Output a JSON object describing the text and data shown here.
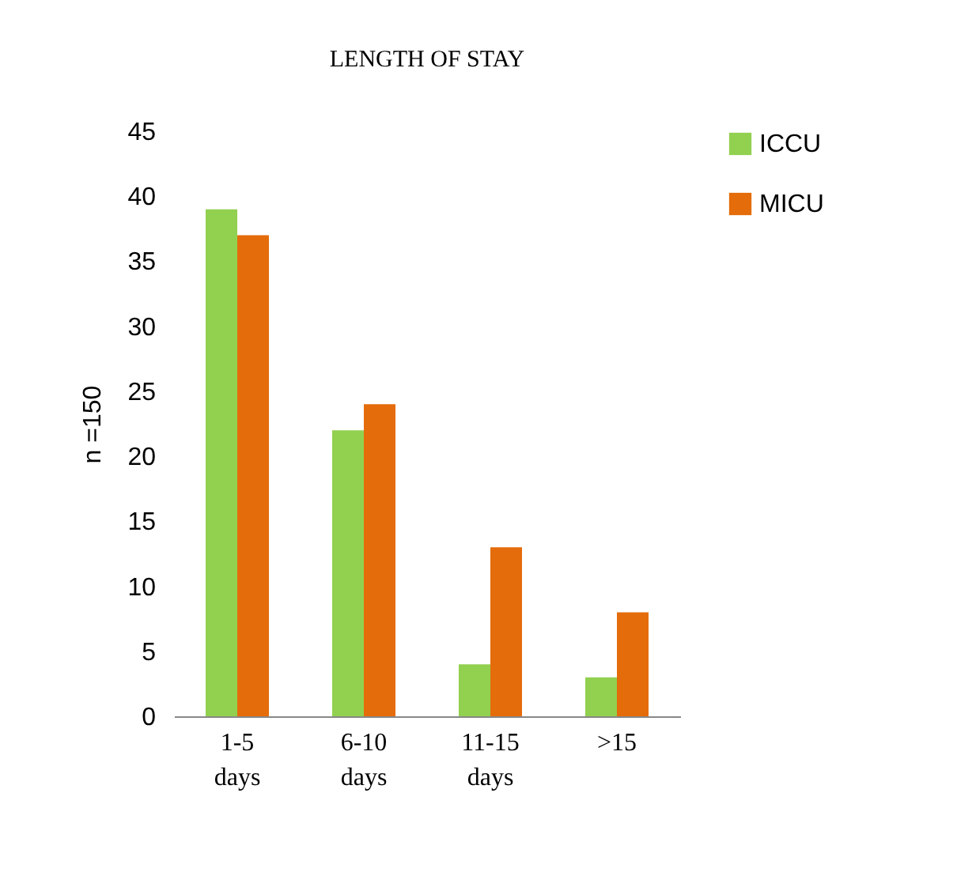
{
  "chart_data": {
    "type": "bar",
    "title": "LENGTH  OF STAY",
    "ylabel": "n =150",
    "categories": [
      "1-5 days",
      "6-10 days",
      "11-15 days",
      ">15"
    ],
    "series": [
      {
        "name": "ICCU",
        "color": "#92d050",
        "values": [
          39,
          22,
          4,
          3
        ]
      },
      {
        "name": "MICU",
        "color": "#e46c0a",
        "values": [
          37,
          24,
          13,
          8
        ]
      }
    ],
    "ylim": [
      0,
      45
    ],
    "yticks": [
      0,
      5,
      10,
      15,
      20,
      25,
      30,
      35,
      40,
      45
    ],
    "grid": false,
    "legend": "right"
  }
}
